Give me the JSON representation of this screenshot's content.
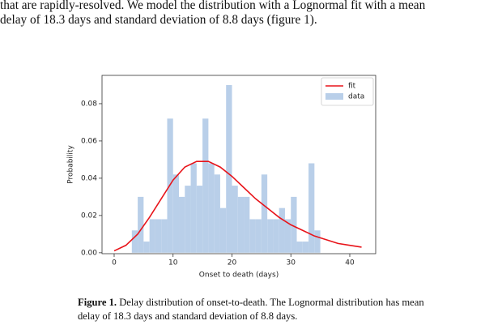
{
  "paper": {
    "paragraph_lines": [
      "that are rapidly-resolved. We model the distribution with a Lognormal fit with a mean",
      "delay of 18.3 days and standard deviation of 8.8 days (figure 1)."
    ],
    "caption_label": "Figure 1.",
    "caption_lines": [
      "Delay distribution of onset-to-death. The Lognormal distribution has mean",
      "delay of 18.3 days and standard deviation of 8.8 days."
    ]
  },
  "chart_data": {
    "type": "histogram",
    "xlabel": "Onset to death (days)",
    "ylabel": "Probability",
    "xlim": [
      -2.06,
      44.4
    ],
    "ylim": [
      -0.0005,
      0.0952
    ],
    "xticks": [
      0,
      10,
      20,
      30,
      40
    ],
    "yticks": [
      {
        "value": 0,
        "label": "0.00"
      },
      {
        "value": 0.02,
        "label": "0.02"
      },
      {
        "value": 0.04,
        "label": "0.04"
      },
      {
        "value": 0.06,
        "label": "0.06"
      },
      {
        "value": 0.08,
        "label": "0.08"
      }
    ],
    "legend": "upper right",
    "series": [
      {
        "name": "fit",
        "type": "line",
        "color": "#e8141a",
        "x": [
          0,
          2,
          4,
          6,
          8,
          10,
          12,
          14,
          16,
          18,
          20,
          22,
          24,
          26,
          28,
          30,
          32,
          34,
          36,
          38,
          40,
          42
        ],
        "values": [
          0.001,
          0.004,
          0.01,
          0.019,
          0.029,
          0.039,
          0.046,
          0.049,
          0.049,
          0.046,
          0.041,
          0.035,
          0.029,
          0.024,
          0.019,
          0.015,
          0.012,
          0.009,
          0.007,
          0.005,
          0.004,
          0.003
        ]
      },
      {
        "name": "data",
        "type": "histogram",
        "color": "#b9cfe9",
        "bins": [
          3,
          4,
          5,
          6,
          7,
          8,
          9,
          10,
          11,
          12,
          13,
          14,
          15,
          16,
          17,
          18,
          19,
          20,
          21,
          22,
          23,
          24,
          25,
          26,
          27,
          28,
          29,
          30,
          31,
          32,
          33,
          34,
          35
        ],
        "values": [
          0.012,
          0.03,
          0.006,
          0.018,
          0.018,
          0.018,
          0.072,
          0.042,
          0.03,
          0.036,
          0.048,
          0.036,
          0.072,
          0.048,
          0.042,
          0.024,
          0.09,
          0.036,
          0.03,
          0.03,
          0.018,
          0.018,
          0.042,
          0.018,
          0.018,
          0.024,
          0.018,
          0.03,
          0.006,
          0.006,
          0.048,
          0.012
        ]
      }
    ]
  }
}
